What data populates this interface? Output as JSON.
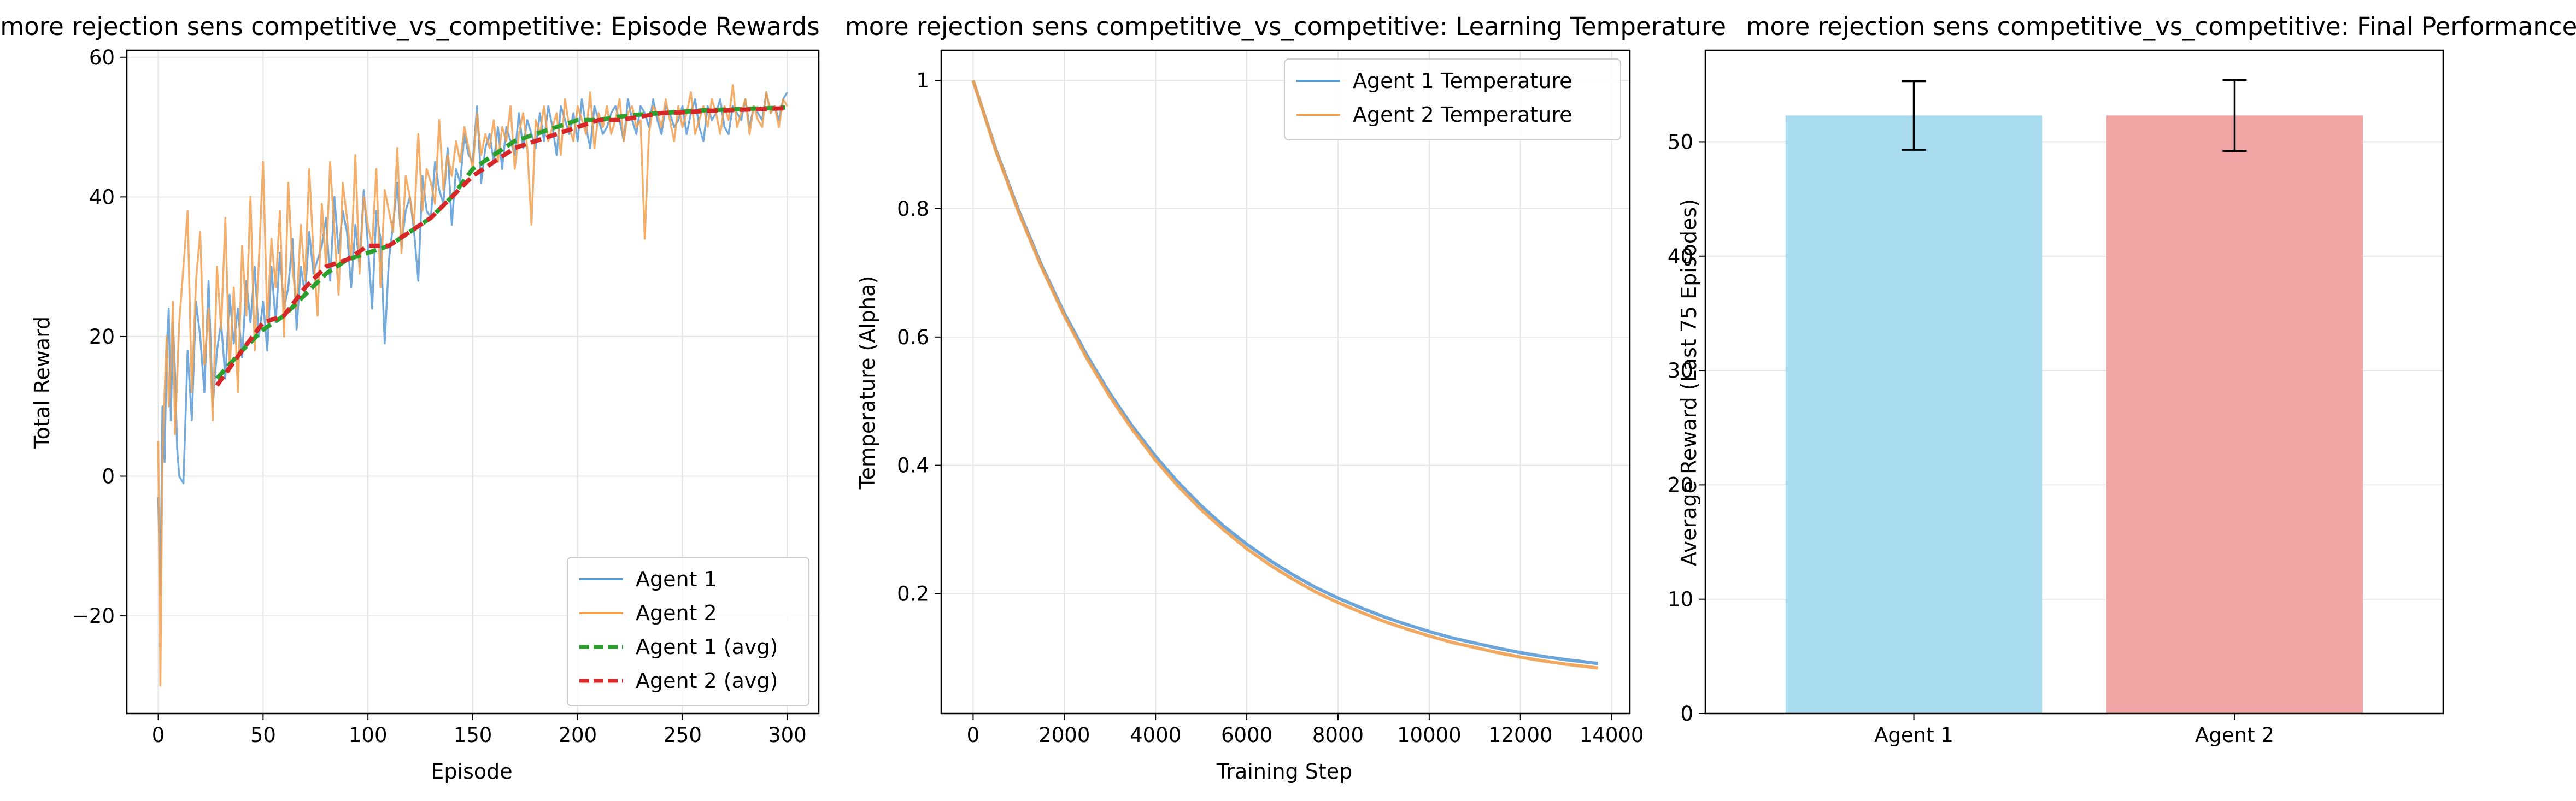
{
  "chart_data": [
    {
      "type": "line",
      "title": "more rejection sens competitive_vs_competitive: Episode Rewards",
      "xlabel": "Episode",
      "ylabel": "Total Reward",
      "xlim": [
        -15,
        315
      ],
      "ylim": [
        -34,
        61
      ],
      "xticks": [
        0,
        50,
        100,
        150,
        200,
        250,
        300
      ],
      "yticks": [
        -20,
        0,
        20,
        40,
        60
      ],
      "grid": true,
      "legend_position": "lower-right",
      "series": [
        {
          "name": "Agent 1",
          "color": "#5b9bd5",
          "style": "raw",
          "x": [
            0,
            1,
            2,
            3,
            4,
            5,
            6,
            7,
            8,
            9,
            10,
            12,
            14,
            16,
            18,
            20,
            22,
            24,
            26,
            28,
            30,
            32,
            34,
            36,
            38,
            40,
            42,
            44,
            46,
            48,
            50,
            52,
            54,
            56,
            58,
            60,
            62,
            64,
            66,
            68,
            70,
            72,
            74,
            76,
            78,
            80,
            82,
            84,
            86,
            88,
            90,
            92,
            94,
            96,
            98,
            100,
            102,
            104,
            106,
            108,
            110,
            112,
            114,
            116,
            118,
            120,
            122,
            124,
            126,
            128,
            130,
            132,
            134,
            136,
            138,
            140,
            142,
            144,
            146,
            148,
            150,
            152,
            154,
            156,
            158,
            160,
            162,
            164,
            166,
            168,
            170,
            172,
            174,
            176,
            178,
            180,
            182,
            184,
            186,
            188,
            190,
            192,
            194,
            196,
            198,
            200,
            202,
            204,
            206,
            208,
            210,
            212,
            214,
            216,
            218,
            220,
            222,
            224,
            226,
            228,
            230,
            232,
            234,
            236,
            238,
            240,
            242,
            244,
            246,
            248,
            250,
            252,
            254,
            256,
            258,
            260,
            262,
            264,
            266,
            268,
            270,
            272,
            274,
            276,
            278,
            280,
            282,
            284,
            286,
            288,
            290,
            292,
            294,
            296,
            298,
            300
          ],
          "y": [
            -3,
            -17,
            10,
            2,
            18,
            24,
            8,
            22,
            15,
            4,
            0,
            -1,
            18,
            8,
            25,
            20,
            12,
            28,
            10,
            18,
            22,
            14,
            26,
            19,
            24,
            17,
            28,
            22,
            30,
            20,
            25,
            18,
            30,
            22,
            32,
            24,
            27,
            34,
            21,
            30,
            26,
            35,
            29,
            31,
            33,
            37,
            28,
            40,
            32,
            38,
            35,
            27,
            36,
            30,
            41,
            33,
            24,
            38,
            34,
            19,
            31,
            36,
            42,
            33,
            38,
            40,
            35,
            28,
            43,
            38,
            37,
            45,
            41,
            39,
            47,
            36,
            44,
            42,
            49,
            46,
            45,
            53,
            42,
            47,
            49,
            45,
            50,
            44,
            50,
            48,
            46,
            52,
            47,
            51,
            49,
            47,
            52,
            48,
            53,
            50,
            46,
            53,
            51,
            49,
            52,
            48,
            54,
            50,
            47,
            53,
            51,
            49,
            50,
            52,
            53,
            51,
            48,
            54,
            51,
            49,
            53,
            52,
            50,
            54,
            51,
            49,
            53,
            52,
            50,
            51,
            53,
            49,
            52,
            54,
            50,
            48,
            53,
            51,
            52,
            54,
            50,
            49,
            53,
            52,
            51,
            54,
            50,
            53,
            52,
            51,
            55,
            52,
            53,
            51,
            54,
            55
          ]
        },
        {
          "name": "Agent 2",
          "color": "#f0a050",
          "style": "raw",
          "x": [
            0,
            1,
            2,
            3,
            4,
            5,
            6,
            7,
            8,
            9,
            10,
            12,
            14,
            16,
            18,
            20,
            22,
            24,
            26,
            28,
            30,
            32,
            34,
            36,
            38,
            40,
            42,
            44,
            46,
            48,
            50,
            52,
            54,
            56,
            58,
            60,
            62,
            64,
            66,
            68,
            70,
            72,
            74,
            76,
            78,
            80,
            82,
            84,
            86,
            88,
            90,
            92,
            94,
            96,
            98,
            100,
            102,
            104,
            106,
            108,
            110,
            112,
            114,
            116,
            118,
            120,
            122,
            124,
            126,
            128,
            130,
            132,
            134,
            136,
            138,
            140,
            142,
            144,
            146,
            148,
            150,
            152,
            154,
            156,
            158,
            160,
            162,
            164,
            166,
            168,
            170,
            172,
            174,
            176,
            178,
            180,
            182,
            184,
            186,
            188,
            190,
            192,
            194,
            196,
            198,
            200,
            202,
            204,
            206,
            208,
            210,
            212,
            214,
            216,
            218,
            220,
            222,
            224,
            226,
            228,
            230,
            232,
            234,
            236,
            238,
            240,
            242,
            244,
            246,
            248,
            250,
            252,
            254,
            256,
            258,
            260,
            262,
            264,
            266,
            268,
            270,
            272,
            274,
            276,
            278,
            280,
            282,
            284,
            286,
            288,
            290,
            292,
            294,
            296,
            298,
            300
          ],
          "y": [
            5,
            -30,
            3,
            12,
            20,
            10,
            16,
            25,
            6,
            14,
            22,
            30,
            38,
            12,
            28,
            35,
            16,
            24,
            8,
            30,
            21,
            37,
            15,
            27,
            12,
            33,
            23,
            40,
            18,
            31,
            45,
            22,
            34,
            27,
            38,
            20,
            42,
            30,
            24,
            36,
            28,
            44,
            32,
            23,
            39,
            30,
            45,
            35,
            26,
            42,
            37,
            31,
            46,
            29,
            40,
            36,
            33,
            44,
            27,
            41,
            38,
            35,
            47,
            32,
            43,
            40,
            36,
            49,
            38,
            44,
            42,
            39,
            51,
            41,
            46,
            43,
            48,
            45,
            50,
            47,
            44,
            52,
            46,
            49,
            47,
            51,
            45,
            50,
            48,
            53,
            44,
            49,
            52,
            47,
            36,
            51,
            49,
            53,
            48,
            50,
            52,
            46,
            54,
            50,
            48,
            53,
            51,
            49,
            55,
            47,
            52,
            50,
            53,
            49,
            51,
            54,
            48,
            52,
            53,
            50,
            51,
            34,
            49,
            53,
            52,
            50,
            54,
            51,
            48,
            53,
            50,
            52,
            55,
            49,
            51,
            53,
            50,
            54,
            52,
            49,
            53,
            51,
            56,
            50,
            52,
            54,
            49,
            53,
            51,
            50,
            55,
            52,
            53,
            50,
            54,
            53
          ]
        },
        {
          "name": "Agent 1 (avg)",
          "color": "#2ca02c",
          "style": "avg",
          "x": [
            28,
            40,
            50,
            60,
            70,
            80,
            90,
            100,
            110,
            120,
            130,
            140,
            150,
            160,
            170,
            180,
            190,
            200,
            210,
            220,
            230,
            240,
            250,
            260,
            270,
            280,
            290,
            299
          ],
          "y": [
            14,
            18,
            21,
            23,
            26,
            29,
            31,
            32,
            33,
            35,
            37,
            40,
            44,
            46,
            48,
            49,
            50,
            51,
            51,
            51.5,
            51.8,
            52,
            52.2,
            52.4,
            52.5,
            52.6,
            52.7,
            52.8
          ]
        },
        {
          "name": "Agent 2 (avg)",
          "color": "#d62728",
          "style": "avg",
          "x": [
            28,
            40,
            50,
            60,
            70,
            80,
            90,
            100,
            110,
            120,
            130,
            140,
            150,
            160,
            170,
            180,
            190,
            200,
            210,
            220,
            230,
            240,
            250,
            260,
            270,
            280,
            290,
            299
          ],
          "y": [
            13,
            18,
            22,
            23,
            27,
            30,
            31,
            33,
            33,
            35,
            37,
            40,
            43,
            45,
            47,
            48,
            49,
            50,
            51,
            51,
            51.5,
            52,
            52.1,
            52.3,
            52.4,
            52.5,
            52.6,
            52.7
          ]
        }
      ]
    },
    {
      "type": "line",
      "title": "more rejection sens competitive_vs_competitive: Learning Temperature",
      "xlabel": "Training Step",
      "ylabel": "Temperature (Alpha)",
      "xlim": [
        -700,
        14400
      ],
      "ylim": [
        0.013,
        1.047
      ],
      "xticks": [
        0,
        2000,
        4000,
        6000,
        8000,
        10000,
        12000,
        14000
      ],
      "yticks": [
        0.2,
        0.4,
        0.6,
        0.8,
        1.0
      ],
      "grid": true,
      "legend_position": "upper-right",
      "series": [
        {
          "name": "Agent 1 Temperature",
          "color": "#5b9bd5",
          "x": [
            0,
            500,
            1000,
            1500,
            2000,
            2500,
            3000,
            3500,
            4000,
            4500,
            5000,
            5500,
            6000,
            6500,
            7000,
            7500,
            8000,
            8500,
            9000,
            9500,
            10000,
            10500,
            11000,
            11500,
            12000,
            12500,
            13000,
            13700
          ],
          "y": [
            1.0,
            0.892,
            0.797,
            0.712,
            0.637,
            0.571,
            0.512,
            0.46,
            0.414,
            0.373,
            0.337,
            0.305,
            0.277,
            0.252,
            0.23,
            0.21,
            0.193,
            0.178,
            0.164,
            0.152,
            0.141,
            0.131,
            0.123,
            0.115,
            0.108,
            0.102,
            0.097,
            0.091
          ]
        },
        {
          "name": "Agent 2 Temperature",
          "color": "#f0a050",
          "x": [
            0,
            500,
            1000,
            1500,
            2000,
            2500,
            3000,
            3500,
            4000,
            4500,
            5000,
            5500,
            6000,
            6500,
            7000,
            7500,
            8000,
            8500,
            9000,
            9500,
            10000,
            10500,
            11000,
            11500,
            12000,
            12500,
            13000,
            13700
          ],
          "y": [
            1.0,
            0.89,
            0.794,
            0.709,
            0.633,
            0.566,
            0.507,
            0.455,
            0.408,
            0.367,
            0.331,
            0.299,
            0.27,
            0.245,
            0.223,
            0.203,
            0.186,
            0.171,
            0.157,
            0.145,
            0.134,
            0.124,
            0.116,
            0.108,
            0.101,
            0.095,
            0.09,
            0.084
          ]
        }
      ],
      "tail_values": {
        "Agent 1 Temperature": [
          0.075,
          0.07,
          0.066,
          0.064,
          0.063
        ],
        "Agent 2 Temperature": [
          0.072,
          0.066,
          0.062,
          0.059,
          0.058
        ]
      }
    },
    {
      "type": "bar",
      "title": "more rejection sens competitive_vs_competitive: Final Performance",
      "xlabel": "",
      "ylabel": "Average Reward (Last 75 Episodes)",
      "categories": [
        "Agent 1",
        "Agent 2"
      ],
      "values": [
        52.3,
        52.3
      ],
      "errors": [
        3.0,
        3.1
      ],
      "colors": [
        "#a8dbee",
        "#f2a5a5"
      ],
      "ylim": [
        0,
        58
      ],
      "yticks": [
        0,
        10,
        20,
        30,
        40,
        50
      ],
      "grid": true
    }
  ]
}
